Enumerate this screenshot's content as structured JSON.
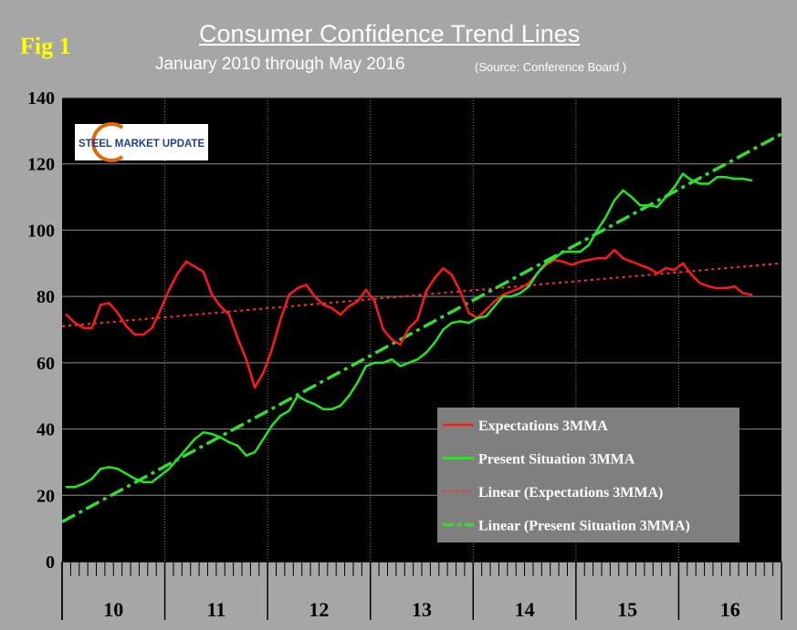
{
  "fig_label": "Fig 1",
  "chart_data": {
    "type": "line",
    "title": "Consumer Confidence Trend Lines",
    "subtitle": "January 2010 through May 2016",
    "source": "(Source: Conference Board )",
    "logo_text": "STEEL MARKET UPDATE",
    "ylim": [
      0,
      140
    ],
    "y_ticks": [
      0,
      20,
      40,
      60,
      80,
      100,
      120,
      140
    ],
    "year_labels": [
      "10",
      "11",
      "12",
      "13",
      "14",
      "15",
      "16"
    ],
    "months_total": 84,
    "colors": {
      "background": "#a6a6a6",
      "plot_area": "#000000",
      "expectations": "#ff1a1a",
      "present": "#22e622",
      "trend_expectations": "#ff3333",
      "trend_present": "#33dd33",
      "legend_bg": "#7f7f7f"
    },
    "series": [
      {
        "name": "Expectations 3MMA",
        "start_month": 0,
        "values": [
          74.5,
          72,
          70.5,
          70.5,
          77.5,
          78,
          75,
          71,
          68.5,
          68.5,
          70.5,
          76,
          82,
          87,
          90.5,
          89,
          87.5,
          80.5,
          77,
          74.5,
          67.5,
          61,
          52.5,
          57,
          64,
          73,
          80.5,
          82.5,
          83.5,
          80,
          77.5,
          76.5,
          74.5,
          77,
          78.5,
          82,
          78.5,
          70,
          67,
          65.5,
          70.5,
          73,
          81.5,
          85.5,
          88.5,
          86.5,
          81.5,
          75,
          73.5,
          76,
          78.5,
          80.5,
          81.5,
          82.5,
          84,
          87,
          89.5,
          91,
          90.5,
          89.5,
          90.5,
          91,
          91.5,
          91.5,
          94,
          91.5,
          90.5,
          89.5,
          88.5,
          87,
          88.5,
          88,
          90,
          86.5,
          84,
          83,
          82.5,
          82.5,
          83,
          81,
          80.5
        ]
      },
      {
        "name": "Present Situation 3MMA",
        "start_month": 0,
        "values": [
          22.5,
          22.5,
          23.5,
          25,
          28,
          28.5,
          28,
          26.5,
          25,
          24,
          24,
          26,
          28,
          31,
          34,
          37,
          39,
          38.5,
          37.5,
          36,
          35,
          32,
          33,
          37,
          41,
          44,
          45.5,
          50,
          48.5,
          47.5,
          46,
          46,
          47,
          50,
          54,
          59,
          60,
          60,
          61,
          59,
          60,
          61,
          63,
          66,
          70,
          72,
          72.5,
          72,
          73.5,
          74,
          77,
          80,
          80,
          81,
          83,
          87,
          90,
          91.5,
          93.5,
          93.5,
          93.5,
          95.5,
          100,
          104,
          109,
          112,
          110,
          107.5,
          107.5,
          107,
          110,
          113,
          117,
          115,
          114,
          114,
          116,
          116,
          115.5,
          115.5,
          115
        ]
      },
      {
        "name": "Linear (Expectations 3MMA)",
        "style": "dotted",
        "trend_of": "Expectations 3MMA",
        "points": [
          [
            0,
            71
          ],
          [
            84,
            90
          ]
        ]
      },
      {
        "name": "Linear (Present Situation 3MMA)",
        "style": "dash-dot",
        "trend_of": "Present Situation 3MMA",
        "points": [
          [
            0,
            12
          ],
          [
            84,
            129
          ]
        ]
      }
    ],
    "legend": [
      "Expectations 3MMA",
      "Present Situation 3MMA",
      "Linear (Expectations 3MMA)",
      "Linear (Present Situation 3MMA)"
    ],
    "legend_position": "bottom-right"
  }
}
